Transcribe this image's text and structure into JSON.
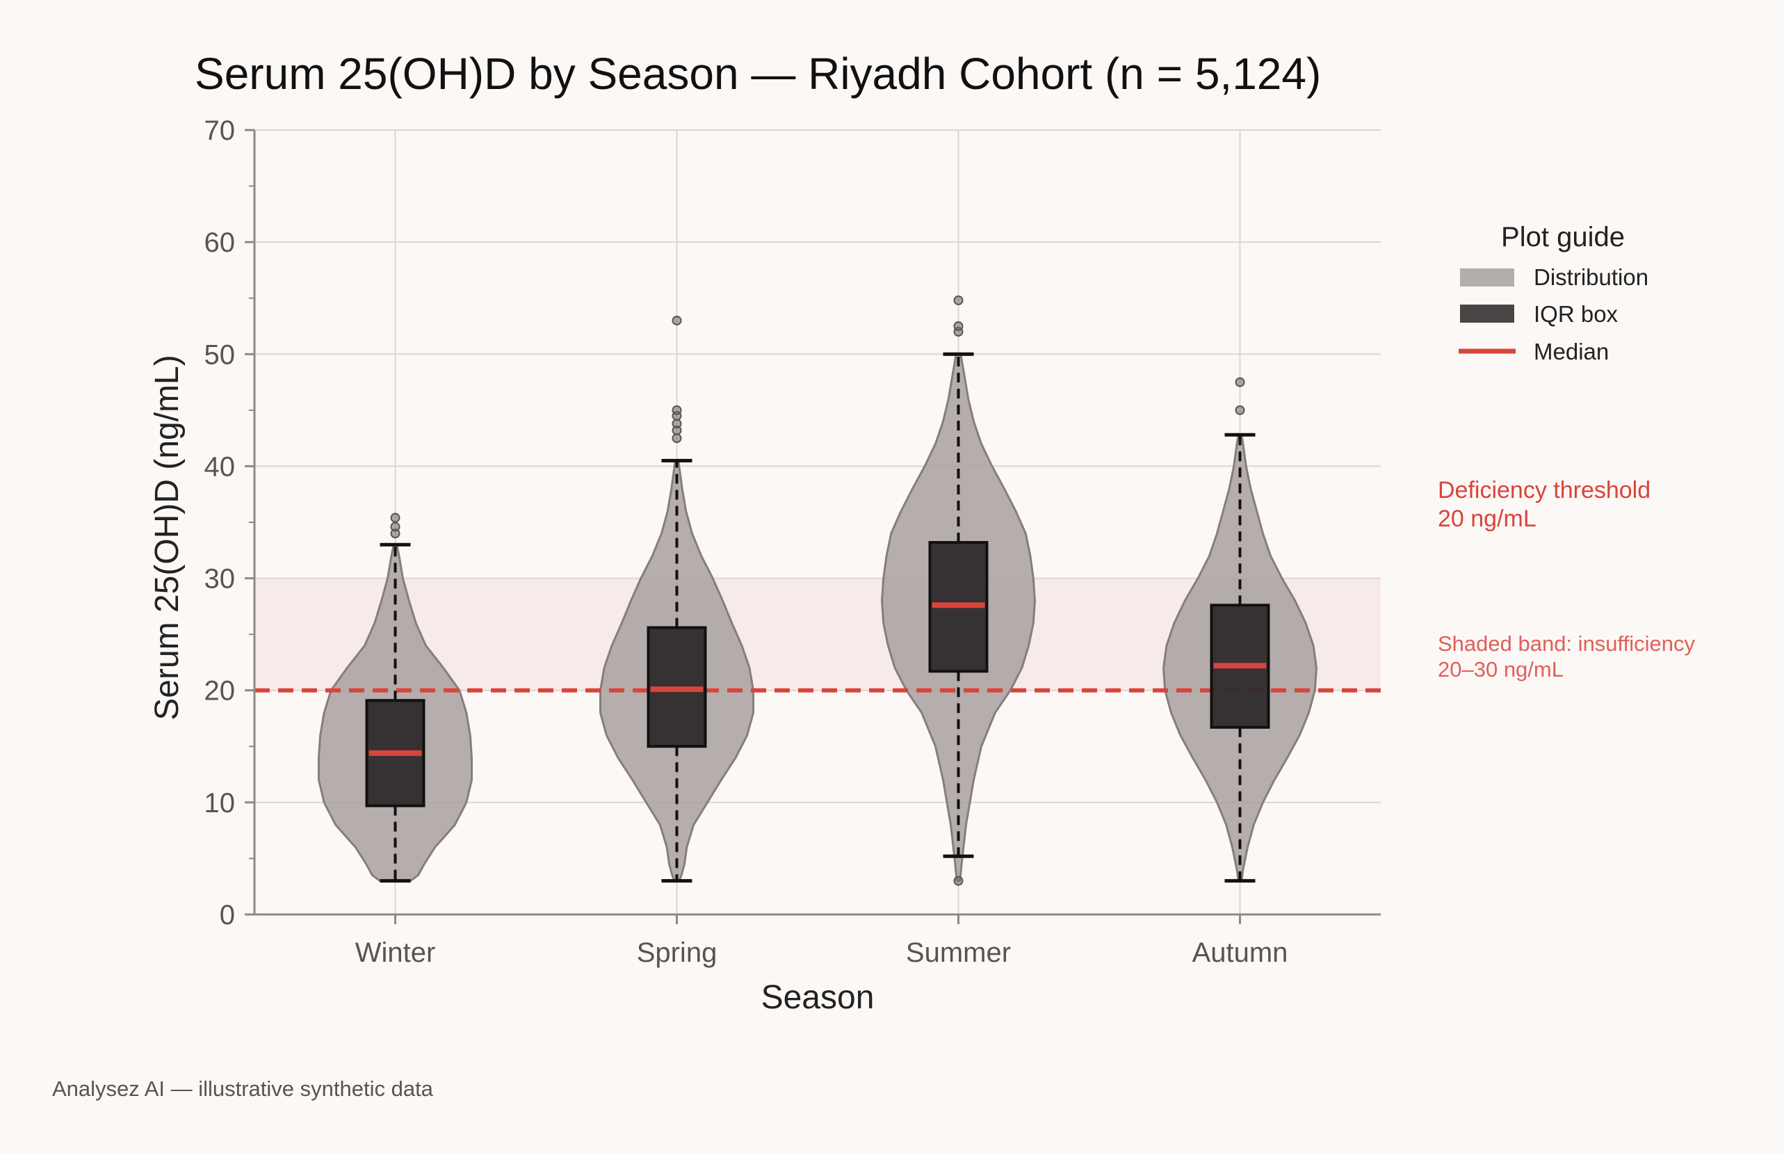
{
  "chart_data": {
    "type": "violin-box",
    "title": "Serum 25(OH)D by Season — Riyadh Cohort (n = 5,124)",
    "xlabel": "Season",
    "ylabel": "Serum 25(OH)D (ng/mL)",
    "ylim": [
      0,
      70
    ],
    "yticks": [
      "0",
      "10",
      "20",
      "30",
      "40",
      "50",
      "60",
      "70"
    ],
    "grid": true,
    "categories": [
      "Winter",
      "Spring",
      "Summer",
      "Autumn"
    ],
    "series": [
      {
        "category": "Winter",
        "median": 14.4,
        "q1": 9.7,
        "q3": 19.1,
        "whisker_low": 3.0,
        "whisker_high": 33.0,
        "outliers": [
          34.0,
          34.6,
          35.4
        ],
        "density": [
          [
            3,
            0.2
          ],
          [
            3.5,
            0.3
          ],
          [
            4.5,
            0.38
          ],
          [
            6,
            0.52
          ],
          [
            8,
            0.78
          ],
          [
            10,
            0.93
          ],
          [
            12,
            1.0
          ],
          [
            14,
            1.0
          ],
          [
            16,
            0.98
          ],
          [
            18,
            0.93
          ],
          [
            20,
            0.84
          ],
          [
            22,
            0.63
          ],
          [
            24,
            0.4
          ],
          [
            26,
            0.27
          ],
          [
            28,
            0.18
          ],
          [
            30,
            0.1
          ],
          [
            32,
            0.05
          ],
          [
            33,
            0.02
          ]
        ]
      },
      {
        "category": "Spring",
        "median": 20.1,
        "q1": 15.0,
        "q3": 25.6,
        "whisker_low": 3.0,
        "whisker_high": 40.5,
        "outliers": [
          42.5,
          43.2,
          43.8,
          44.5,
          45.0,
          53.0
        ],
        "density": [
          [
            3,
            0.03
          ],
          [
            3.5,
            0.06
          ],
          [
            4.5,
            0.1
          ],
          [
            6,
            0.13
          ],
          [
            8,
            0.22
          ],
          [
            10,
            0.4
          ],
          [
            12,
            0.58
          ],
          [
            14,
            0.77
          ],
          [
            16,
            0.92
          ],
          [
            18,
            1.0
          ],
          [
            20,
            1.0
          ],
          [
            22,
            0.95
          ],
          [
            24,
            0.85
          ],
          [
            26,
            0.72
          ],
          [
            28,
            0.6
          ],
          [
            30,
            0.47
          ],
          [
            32,
            0.32
          ],
          [
            34,
            0.2
          ],
          [
            36,
            0.12
          ],
          [
            38,
            0.07
          ],
          [
            40,
            0.03
          ],
          [
            40.5,
            0.02
          ]
        ]
      },
      {
        "category": "Summer",
        "median": 27.6,
        "q1": 21.7,
        "q3": 33.2,
        "whisker_low": 5.2,
        "whisker_high": 50.0,
        "outliers": [
          3.0,
          52.0,
          52.5,
          54.8
        ],
        "density": [
          [
            3,
            0.02
          ],
          [
            5,
            0.05
          ],
          [
            8,
            0.1
          ],
          [
            12,
            0.2
          ],
          [
            15,
            0.3
          ],
          [
            18,
            0.48
          ],
          [
            20,
            0.68
          ],
          [
            22,
            0.83
          ],
          [
            24,
            0.92
          ],
          [
            26,
            0.98
          ],
          [
            28,
            1.0
          ],
          [
            30,
            0.98
          ],
          [
            32,
            0.94
          ],
          [
            34,
            0.88
          ],
          [
            36,
            0.75
          ],
          [
            38,
            0.6
          ],
          [
            40,
            0.44
          ],
          [
            42,
            0.3
          ],
          [
            44,
            0.2
          ],
          [
            46,
            0.13
          ],
          [
            48,
            0.08
          ],
          [
            50,
            0.03
          ]
        ]
      },
      {
        "category": "Autumn",
        "median": 22.2,
        "q1": 16.7,
        "q3": 27.6,
        "whisker_low": 3.0,
        "whisker_high": 42.8,
        "outliers": [
          45.0,
          47.5
        ],
        "density": [
          [
            3,
            0.02
          ],
          [
            4,
            0.04
          ],
          [
            6,
            0.1
          ],
          [
            8,
            0.18
          ],
          [
            10,
            0.3
          ],
          [
            12,
            0.45
          ],
          [
            14,
            0.62
          ],
          [
            16,
            0.78
          ],
          [
            18,
            0.9
          ],
          [
            20,
            0.98
          ],
          [
            22,
            1.0
          ],
          [
            24,
            0.96
          ],
          [
            26,
            0.86
          ],
          [
            28,
            0.72
          ],
          [
            30,
            0.55
          ],
          [
            32,
            0.4
          ],
          [
            34,
            0.3
          ],
          [
            36,
            0.22
          ],
          [
            38,
            0.14
          ],
          [
            40,
            0.08
          ],
          [
            42,
            0.04
          ],
          [
            42.8,
            0.02
          ]
        ]
      }
    ],
    "reference_line": {
      "value": 20,
      "color": "#d9443b"
    },
    "band": {
      "from": 20,
      "to": 30
    },
    "legend": {
      "title": "Plot guide",
      "placement": "right",
      "items": [
        "Distribution",
        "IQR box",
        "Median"
      ]
    },
    "annotations": {
      "deficiency_line1": "Deficiency threshold",
      "deficiency_line2": "20 ng/mL",
      "band_line1": "Shaded band: insufficiency",
      "band_line2": "20–30 ng/mL"
    },
    "colors": {
      "violin": "#a8a1a0",
      "box": "#2f2a2b",
      "median": "#d9443b",
      "band": "#f6e7e4"
    }
  },
  "footnote": "Analysez AI — illustrative synthetic data"
}
